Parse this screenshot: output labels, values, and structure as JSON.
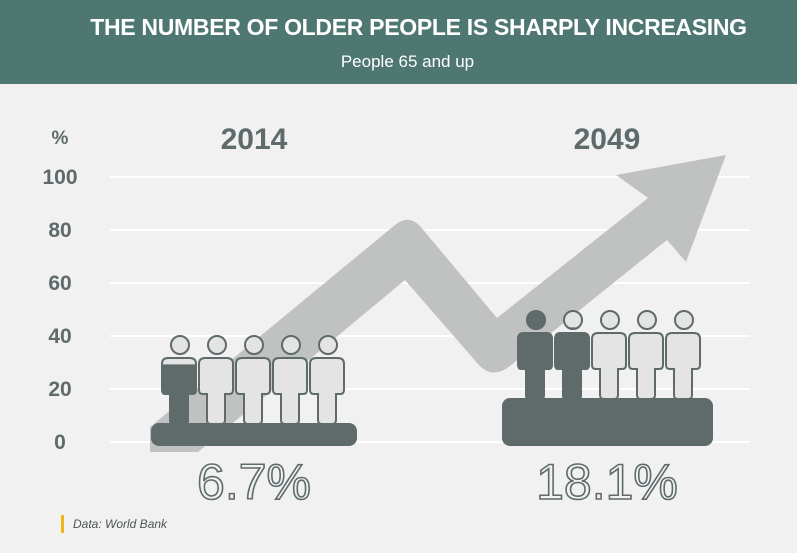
{
  "header": {
    "title": "THE NUMBER OF OLDER PEOPLE IS SHARPLY INCREASING",
    "subtitle": "People 65 and up"
  },
  "source": "Data: World Bank",
  "colors": {
    "header_bg": "#4f7772",
    "background": "#f1f1f1",
    "gridline": "#ffffff",
    "text_dark": "#5f6b6b",
    "figure_filled": "#5f6b6b",
    "figure_empty": "#e4e4e5",
    "arrow": "#c0c2c1",
    "source_accent": "#f2b418"
  },
  "chart_data": {
    "type": "pictogram",
    "title": "THE NUMBER OF OLDER PEOPLE IS SHARPLY INCREASING",
    "subtitle": "People 65 and up",
    "ylabel": "%",
    "ylim": [
      0,
      100
    ],
    "yticks": [
      0,
      20,
      40,
      60,
      80,
      100
    ],
    "grid": true,
    "figures_per_group": 5,
    "categories": [
      "2014",
      "2049"
    ],
    "values": [
      6.7,
      18.1
    ],
    "value_labels": [
      "6.7%",
      "18.1%"
    ],
    "trend": "increasing-arrow",
    "source": "Data: World Bank"
  }
}
